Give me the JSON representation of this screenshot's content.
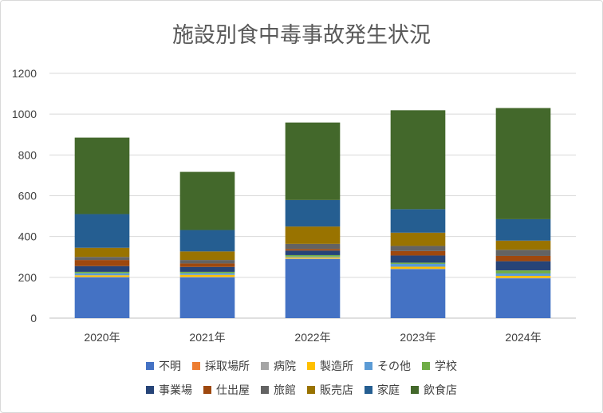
{
  "chart_data": {
    "type": "bar",
    "stacked": true,
    "title": "施設別食中毒事故発生状況",
    "xlabel": "",
    "ylabel": "",
    "ylim": [
      0,
      1200
    ],
    "yticks": [
      0,
      200,
      400,
      600,
      800,
      1000,
      1200
    ],
    "grid": true,
    "legend_position": "bottom",
    "categories": [
      "2020年",
      "2021年",
      "2022年",
      "2023年",
      "2024年"
    ],
    "series": [
      {
        "name": "不明",
        "color": "#4472C4",
        "values": [
          200,
          200,
          290,
          240,
          195
        ]
      },
      {
        "name": "採取場所",
        "color": "#ED7D31",
        "values": [
          0,
          0,
          0,
          0,
          0
        ]
      },
      {
        "name": "病院",
        "color": "#A5A5A5",
        "values": [
          2,
          2,
          2,
          2,
          2
        ]
      },
      {
        "name": "製造所",
        "color": "#FFC000",
        "values": [
          8,
          10,
          6,
          10,
          10
        ]
      },
      {
        "name": "その他",
        "color": "#5B9BD5",
        "values": [
          10,
          8,
          4,
          14,
          12
        ]
      },
      {
        "name": "学校",
        "color": "#70AD47",
        "values": [
          7,
          7,
          7,
          6,
          15
        ]
      },
      {
        "name": "事業場",
        "color": "#264478",
        "values": [
          28,
          24,
          22,
          35,
          45
        ]
      },
      {
        "name": "仕出屋",
        "color": "#9E480E",
        "values": [
          30,
          17,
          8,
          22,
          26
        ]
      },
      {
        "name": "旅館",
        "color": "#636363",
        "values": [
          15,
          17,
          25,
          25,
          30
        ]
      },
      {
        "name": "販売店",
        "color": "#997300",
        "values": [
          45,
          42,
          85,
          65,
          45
        ]
      },
      {
        "name": "家庭",
        "color": "#255E91",
        "values": [
          165,
          105,
          130,
          115,
          105
        ]
      },
      {
        "name": "飲食店",
        "color": "#43682B",
        "values": [
          375,
          285,
          380,
          485,
          545
        ]
      }
    ]
  }
}
